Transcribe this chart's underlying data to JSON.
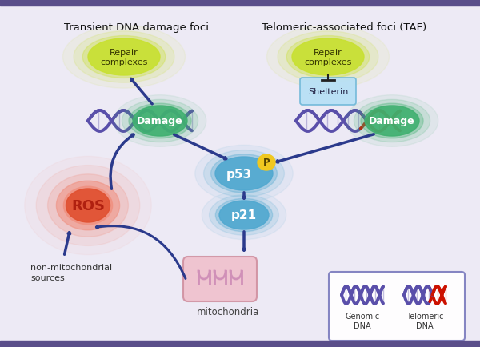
{
  "bg_color": "#edeaf5",
  "border_color": "#5a4e8a",
  "title_left": "Transient DNA damage foci",
  "title_right": "Telomeric-associated foci (TAF)",
  "repair_text": "Repair\ncomplexes",
  "shelterin_text": "Shelterin",
  "damage_text": "Damage",
  "p53_text": "p53",
  "p_text": "P",
  "p21_text": "p21",
  "ros_text": "ROS",
  "mitochondria_text": "mitochondria",
  "non_mito_text": "non-mitochondrial\nsources",
  "genomic_dna_text": "Genomic\nDNA",
  "telomeric_dna_text": "Telomeric\nDNA",
  "arrow_color": "#2b3a8c",
  "dna_color_genomic": "#5a4faa",
  "dna_color_telomeric": "#cc1100",
  "repair_color": "#c8e030",
  "damage_color": "#40b070",
  "p53_color": "#50a8d0",
  "p21_color": "#50a8d0",
  "ros_color_center": "#e05030",
  "ros_color_outer": "#f09080",
  "mito_color": "#f0c0cc",
  "mito_edge": "#d090a0",
  "mito_inner": "#d090b8",
  "shelterin_color": "#b8e0f5",
  "shelterin_edge": "#70b8d8",
  "p_color": "#f0c820",
  "white": "#ffffff",
  "legend_edge": "#8080c0"
}
